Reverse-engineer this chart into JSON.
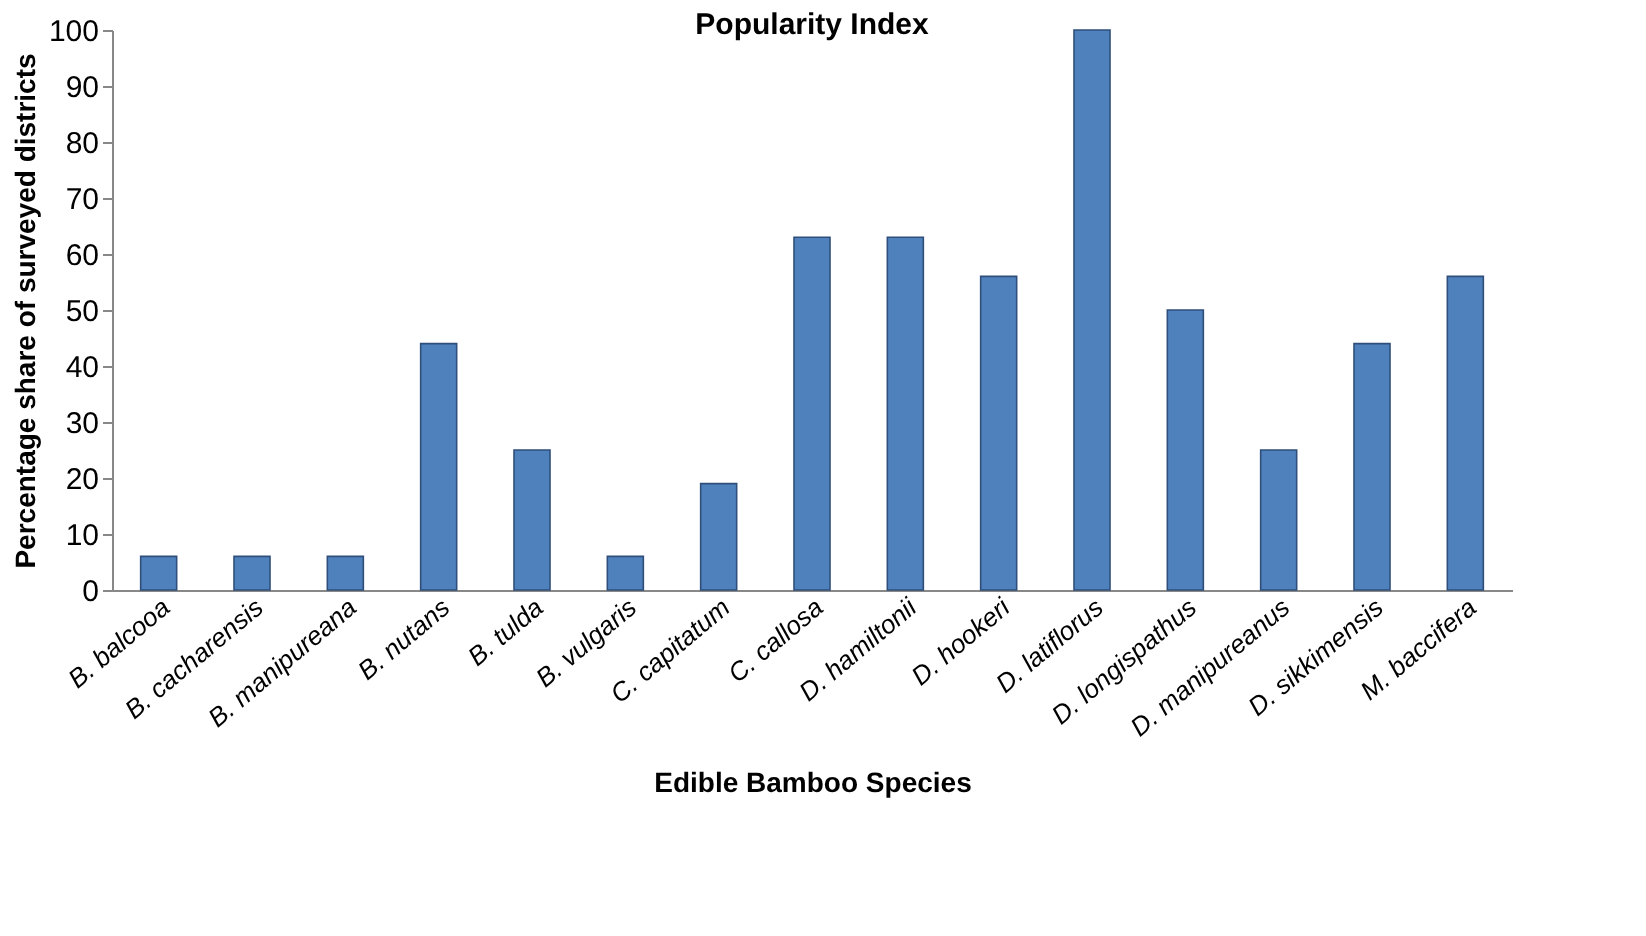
{
  "chart_data": {
    "type": "bar",
    "title": "Popularity Index",
    "xlabel": "Edible Bamboo Species",
    "ylabel": "Percentage share of surveyed districts",
    "categories": [
      "B. balcooa",
      "B. cacharensis",
      "B. manipureana",
      "B. nutans",
      "B. tulda",
      "B. vulgaris",
      "C. capitatum",
      "C. callosa",
      "D. hamiltonii",
      "D. hookeri",
      "D. latiflorus",
      "D. longispathus",
      "D. manipureanus",
      "D. sikkimensis",
      "M. baccifera"
    ],
    "values": [
      6,
      6,
      6,
      44,
      25,
      6,
      19,
      63,
      63,
      56,
      100,
      50,
      25,
      44,
      56
    ],
    "color": "#4f81bd",
    "ylim": [
      0,
      100
    ],
    "yticks": [
      0,
      10,
      20,
      30,
      40,
      50,
      60,
      70,
      80,
      90,
      100
    ],
    "grid": false
  }
}
